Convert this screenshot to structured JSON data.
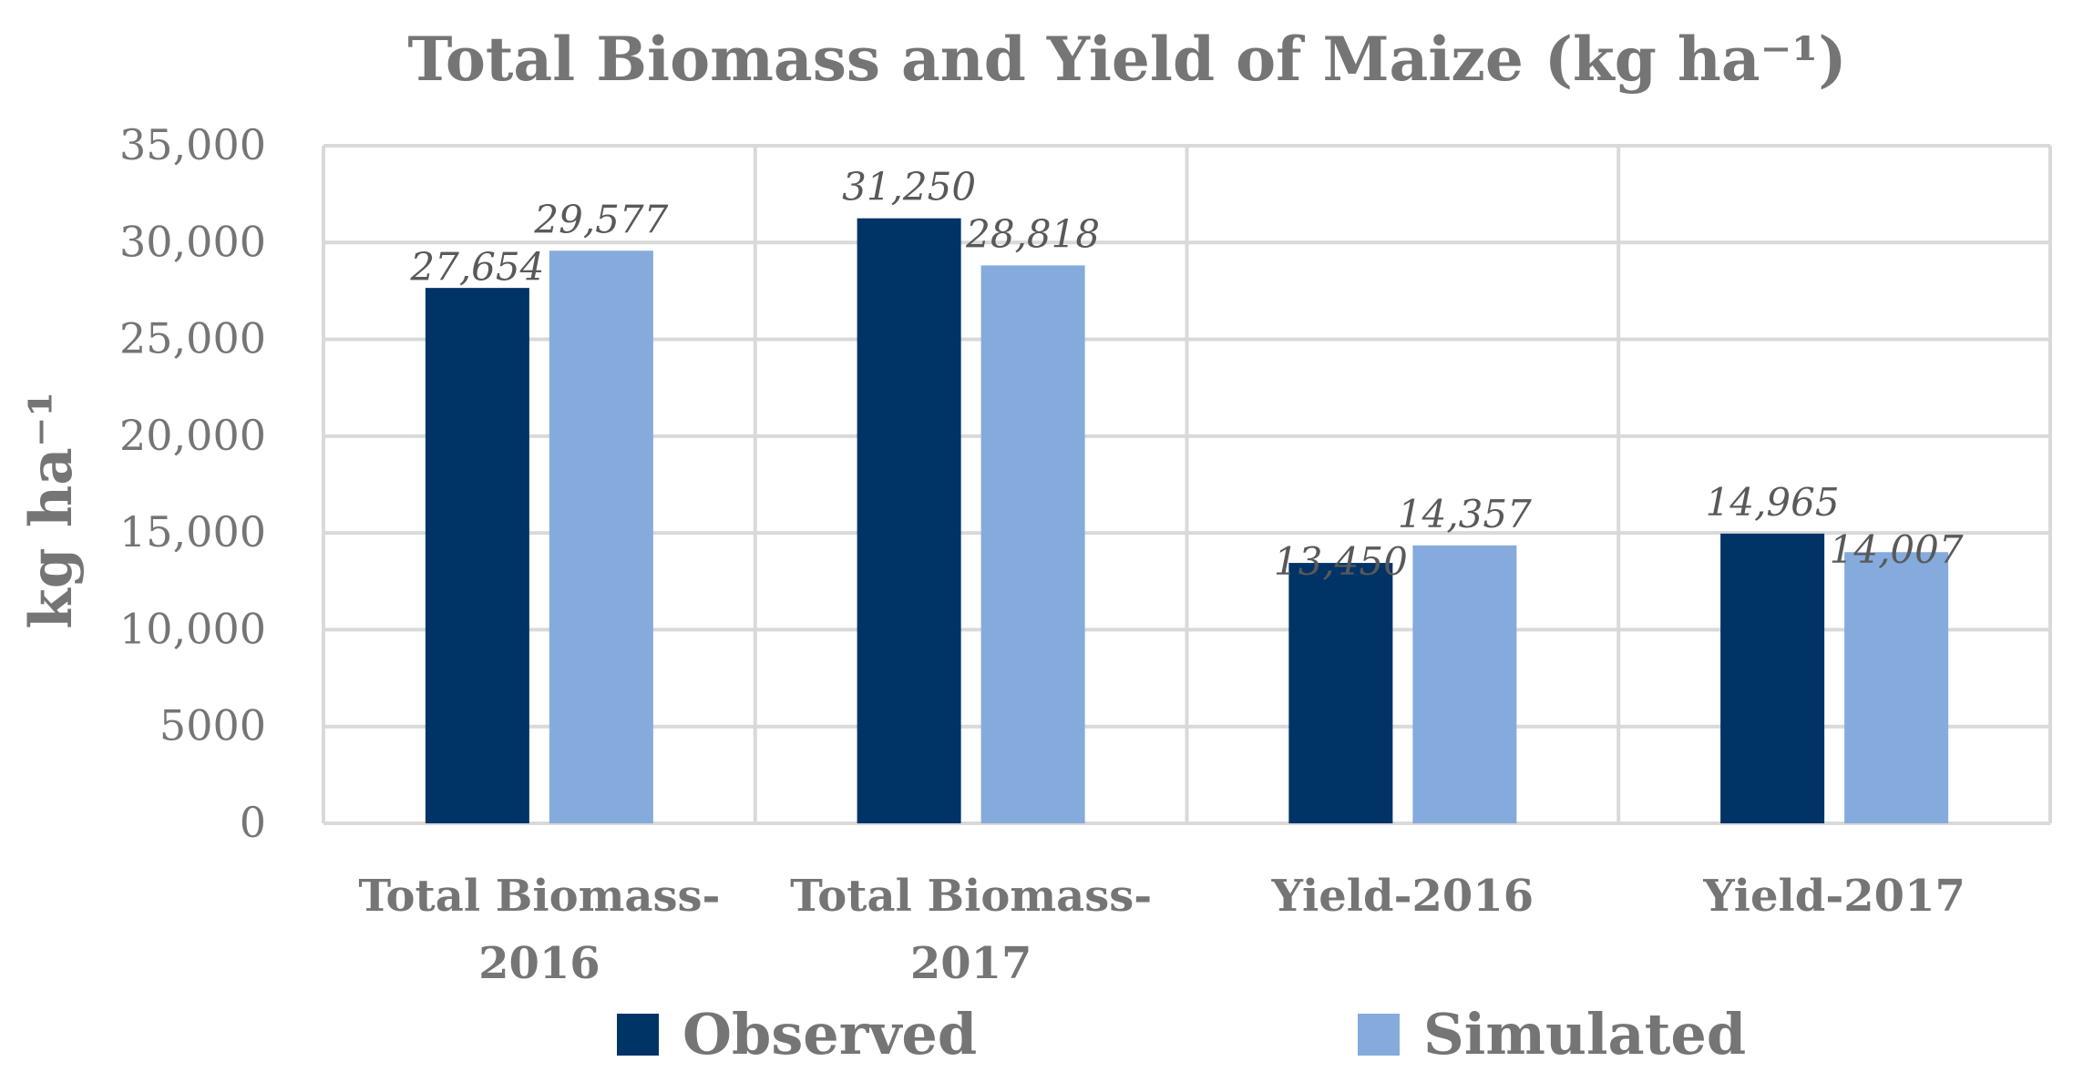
{
  "chart_data": {
    "type": "bar",
    "title": "Total Biomass and Yield of Maize (kg ha⁻¹)",
    "ylabel": "kg ha⁻¹",
    "xlabel": "",
    "ylim": [
      0,
      35000
    ],
    "yticks": [
      {
        "value": 0,
        "label": "0"
      },
      {
        "value": 5000,
        "label": "5000"
      },
      {
        "value": 10000,
        "label": "10,000"
      },
      {
        "value": 15000,
        "label": "15,000"
      },
      {
        "value": 20000,
        "label": "20,000"
      },
      {
        "value": 25000,
        "label": "25,000"
      },
      {
        "value": 30000,
        "label": "30,000"
      },
      {
        "value": 35000,
        "label": "35,000"
      }
    ],
    "categories": [
      [
        "Total Biomass-",
        "2016"
      ],
      [
        "Total Biomass-",
        "2017"
      ],
      [
        "Yield-2016"
      ],
      [
        "Yield-2017"
      ]
    ],
    "series": [
      {
        "name": "Observed",
        "color": "#003366",
        "values": [
          27654,
          31250,
          13450,
          14965
        ],
        "labels": [
          "27,654",
          "31,250",
          "13,450",
          "14,965"
        ]
      },
      {
        "name": "Simulated",
        "color": "#84ABDC",
        "values": [
          29577,
          28818,
          14357,
          14007
        ],
        "labels": [
          "29,577",
          "28,818",
          "14,357",
          "14,007"
        ]
      }
    ],
    "grid": true,
    "legend": "bottom",
    "colors": {
      "grid": "#D9D9D9",
      "text": "#757575",
      "data_label": "#595959"
    }
  }
}
